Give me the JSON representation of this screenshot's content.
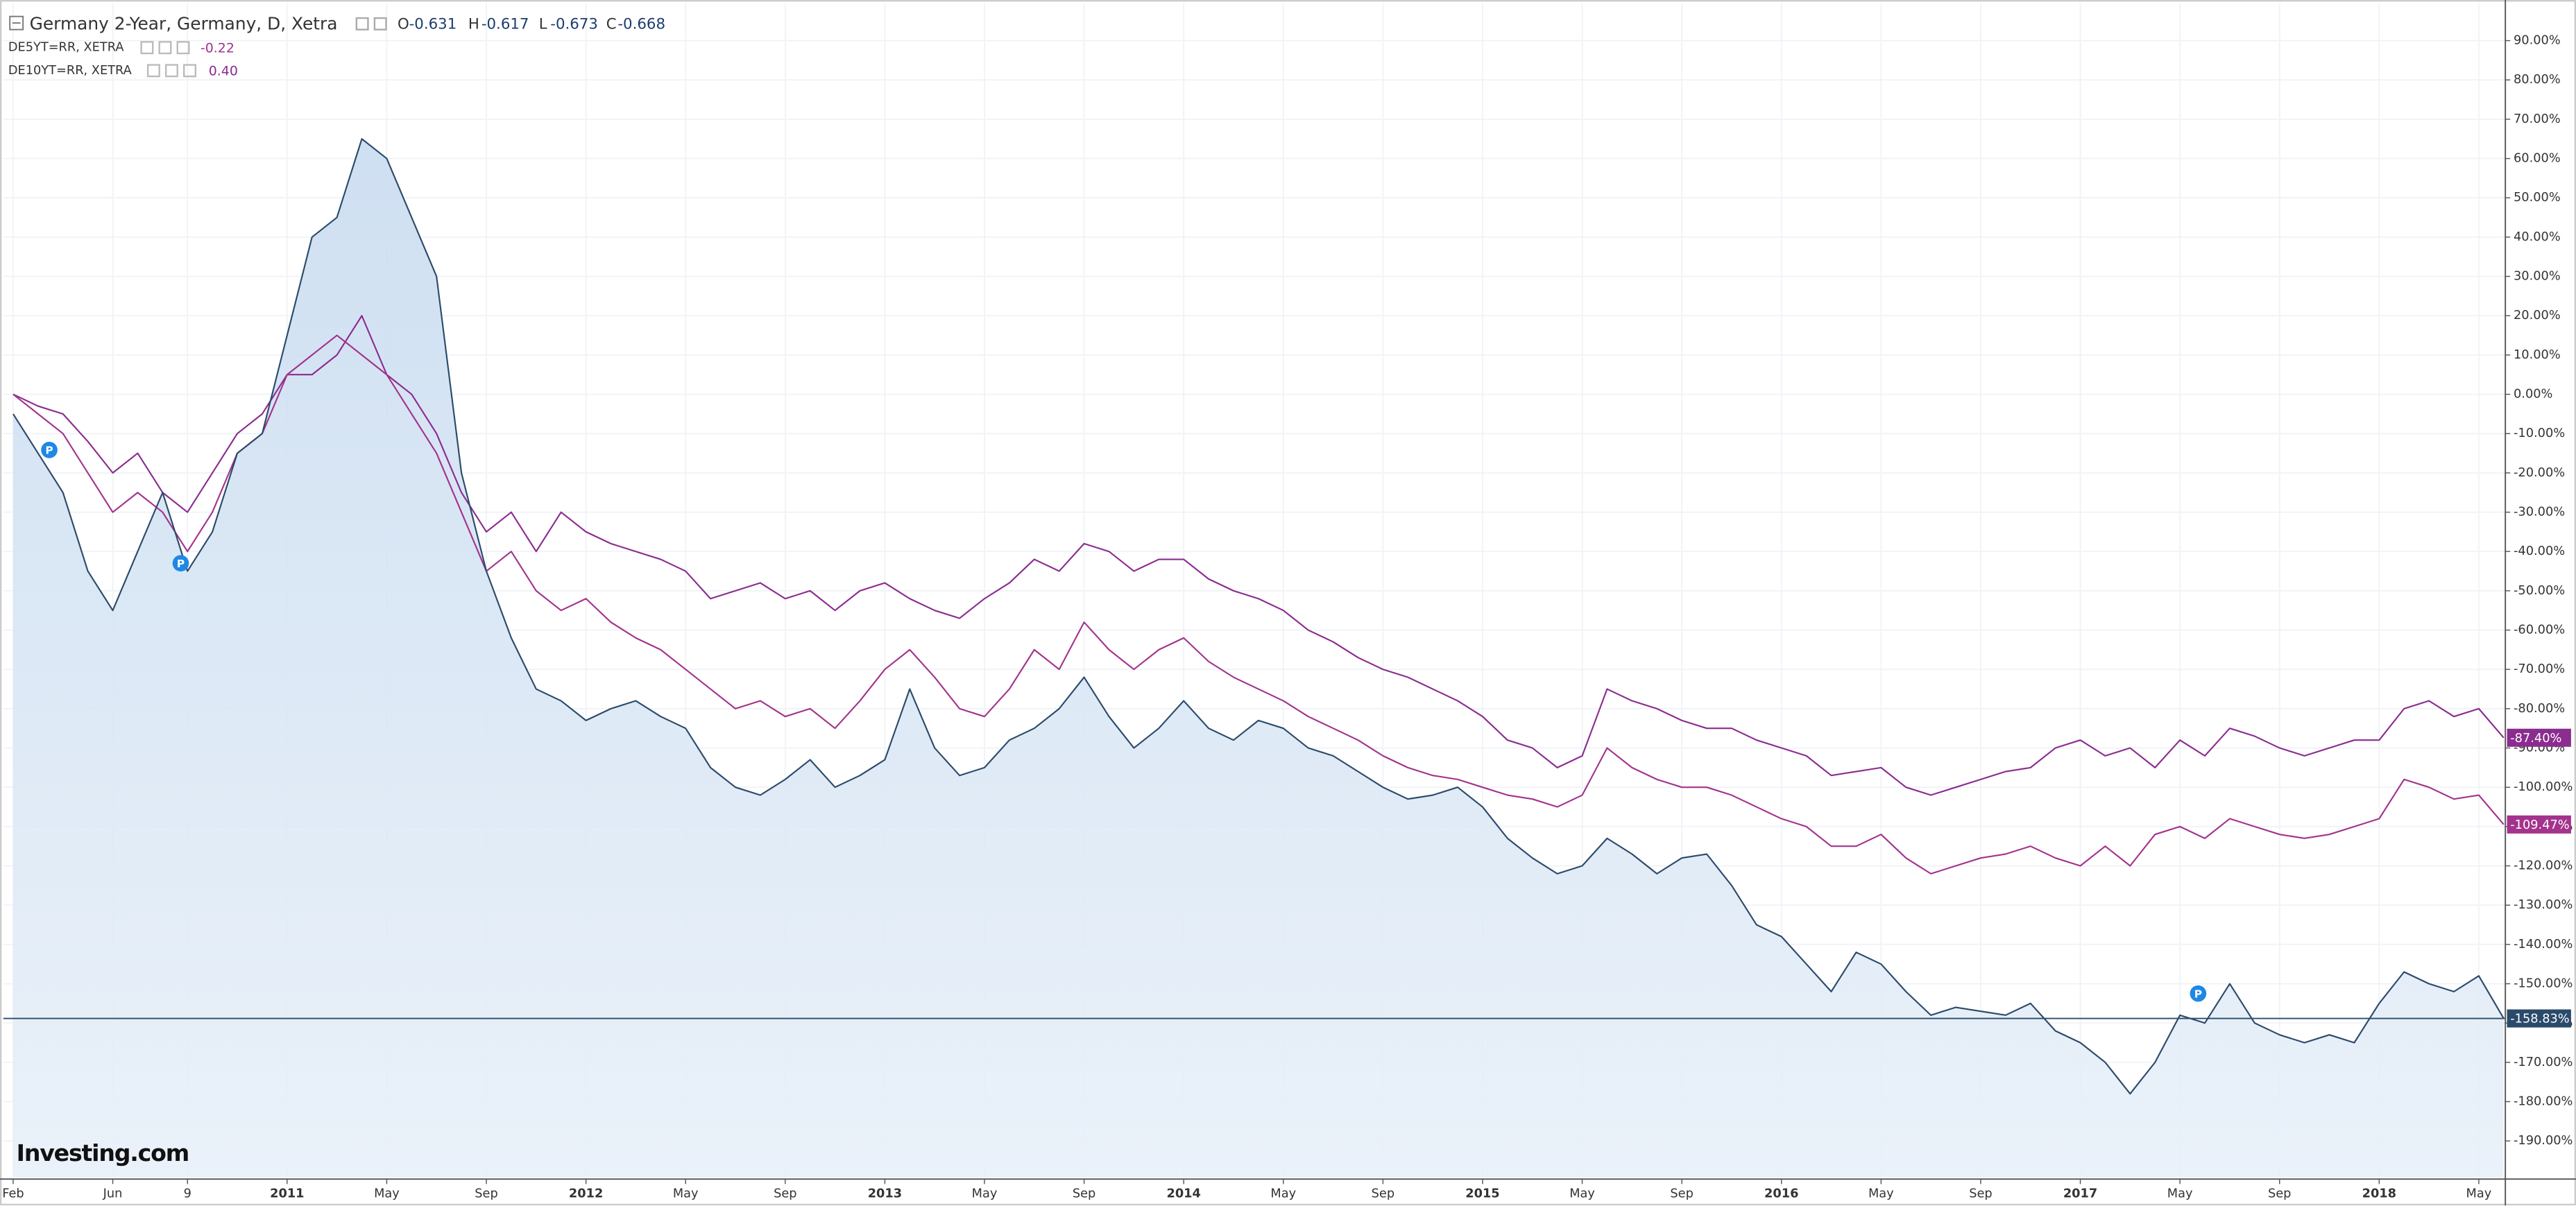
{
  "chart_data": {
    "type": "line",
    "title": "Germany 2-Year, Germany, D, Xetra",
    "ohlc": [
      {
        "label": "O",
        "value": {
          "value": -0.631,
          "label": "-0.631"
        }
      },
      {
        "label": "H",
        "value": {
          "value": -0.617,
          "label": "-0.617"
        }
      },
      {
        "label": "L",
        "value": {
          "value": -0.673,
          "label": "-0.673"
        }
      },
      {
        "label": "C",
        "value": {
          "value": -0.668,
          "label": "-0.668"
        }
      }
    ],
    "logo": "Investing.com",
    "event_marker": "P",
    "categories": [
      "Feb",
      null,
      null,
      null,
      "Jun",
      null,
      null,
      "9",
      null,
      null,
      null,
      "2011",
      null,
      null,
      null,
      "May",
      null,
      null,
      null,
      "Sep",
      null,
      null,
      null,
      "2012",
      null,
      null,
      null,
      "May",
      null,
      null,
      null,
      "Sep",
      null,
      null,
      null,
      "2013",
      null,
      null,
      null,
      "May",
      null,
      null,
      null,
      "Sep",
      null,
      null,
      null,
      "2014",
      null,
      null,
      null,
      "May",
      null,
      null,
      null,
      "Sep",
      null,
      null,
      null,
      "2015",
      null,
      null,
      null,
      "May",
      null,
      null,
      null,
      "Sep",
      null,
      null,
      null,
      "2016",
      null,
      null,
      null,
      "May",
      null,
      null,
      null,
      "Sep",
      null,
      null,
      null,
      "2017",
      null,
      null,
      null,
      "May",
      null,
      null,
      null,
      "Sep",
      null,
      null,
      null,
      "2018",
      null,
      null,
      null,
      "May",
      null
    ],
    "series": [
      {
        "name": "Germany 2-Year, Germany, D, Xetra",
        "color": "#2b4a6b",
        "area": true,
        "values": [
          -5,
          -15,
          -25,
          -45,
          -55,
          -40,
          -25,
          -45,
          -35,
          -15,
          -10,
          15,
          40,
          45,
          65,
          60,
          45,
          30,
          -20,
          -45,
          -62,
          -75,
          -78,
          -83,
          -80,
          -78,
          -82,
          -85,
          -95,
          -100,
          -102,
          -98,
          -93,
          -100,
          -97,
          -93,
          -75,
          -90,
          -97,
          -95,
          -88,
          -85,
          -80,
          -72,
          -82,
          -90,
          -85,
          -78,
          -85,
          -88,
          -83,
          -85,
          -90,
          -92,
          -96,
          -100,
          -103,
          -102,
          -100,
          -105,
          -113,
          -118,
          -122,
          -120,
          -113,
          -117,
          -122,
          -118,
          -117,
          -125,
          -135,
          -138,
          -145,
          -152,
          -142,
          -145,
          -152,
          -158,
          -156,
          -157,
          -158,
          -155,
          -162,
          -165,
          -170,
          -178,
          -170,
          -158,
          -160,
          -150,
          -160,
          -163,
          -165,
          -163,
          -165,
          -155,
          -147,
          -150,
          -152,
          -148,
          -158.83
        ],
        "value_labels": [
          null,
          null,
          null,
          null,
          null,
          null,
          null,
          null,
          null,
          null,
          null,
          null,
          null,
          null,
          null,
          null,
          null,
          null,
          null,
          null,
          null,
          null,
          null,
          null,
          null,
          null,
          null,
          null,
          null,
          null,
          null,
          null,
          null,
          null,
          null,
          null,
          null,
          null,
          null,
          null,
          null,
          null,
          null,
          null,
          null,
          null,
          null,
          null,
          null,
          null,
          null,
          null,
          null,
          null,
          null,
          null,
          null,
          null,
          null,
          null,
          null,
          null,
          null,
          null,
          null,
          null,
          null,
          null,
          null,
          null,
          null,
          null,
          null,
          null,
          null,
          null,
          null,
          null,
          null,
          null,
          null,
          null,
          null,
          null,
          null,
          null,
          null,
          null,
          null,
          null,
          null,
          null,
          null,
          null,
          null,
          null,
          null,
          null,
          null,
          null,
          "-158.83%"
        ]
      },
      {
        "name": "DE5YT=RR, XETRA",
        "color": "#a3338c",
        "legend_value": {
          "value": -0.22,
          "label": "-0.22"
        },
        "values": [
          0,
          -5,
          -10,
          -20,
          -30,
          -25,
          -30,
          -40,
          -30,
          -15,
          -10,
          5,
          10,
          15,
          10,
          5,
          -5,
          -15,
          -30,
          -45,
          -40,
          -50,
          -55,
          -52,
          -58,
          -62,
          -65,
          -70,
          -75,
          -80,
          -78,
          -82,
          -80,
          -85,
          -78,
          -70,
          -65,
          -72,
          -80,
          -82,
          -75,
          -65,
          -70,
          -58,
          -65,
          -70,
          -65,
          -62,
          -68,
          -72,
          -75,
          -78,
          -82,
          -85,
          -88,
          -92,
          -95,
          -97,
          -98,
          -100,
          -102,
          -103,
          -105,
          -102,
          -90,
          -95,
          -98,
          -100,
          -100,
          -102,
          -105,
          -108,
          -110,
          -115,
          -115,
          -112,
          -118,
          -122,
          -120,
          -118,
          -117,
          -115,
          -118,
          -120,
          -115,
          -120,
          -112,
          -110,
          -113,
          -108,
          -110,
          -112,
          -113,
          -112,
          -110,
          -108,
          -98,
          -100,
          -103,
          -102,
          -109.47
        ],
        "value_labels": [
          null,
          null,
          null,
          null,
          null,
          null,
          null,
          null,
          null,
          null,
          null,
          null,
          null,
          null,
          null,
          null,
          null,
          null,
          null,
          null,
          null,
          null,
          null,
          null,
          null,
          null,
          null,
          null,
          null,
          null,
          null,
          null,
          null,
          null,
          null,
          null,
          null,
          null,
          null,
          null,
          null,
          null,
          null,
          null,
          null,
          null,
          null,
          null,
          null,
          null,
          null,
          null,
          null,
          null,
          null,
          null,
          null,
          null,
          null,
          null,
          null,
          null,
          null,
          null,
          null,
          null,
          null,
          null,
          null,
          null,
          null,
          null,
          null,
          null,
          null,
          null,
          null,
          null,
          null,
          null,
          null,
          null,
          null,
          null,
          null,
          null,
          null,
          null,
          null,
          null,
          null,
          null,
          null,
          null,
          null,
          null,
          null,
          null,
          null,
          null,
          "-109.47%"
        ]
      },
      {
        "name": "DE10YT=RR, XETRA",
        "color": "#8b2c8f",
        "legend_value": {
          "value": 0.4,
          "label": "0.40"
        },
        "values": [
          0,
          -3,
          -5,
          -12,
          -20,
          -15,
          -25,
          -30,
          -20,
          -10,
          -5,
          5,
          5,
          10,
          20,
          5,
          0,
          -10,
          -25,
          -35,
          -30,
          -40,
          -30,
          -35,
          -38,
          -40,
          -42,
          -45,
          -52,
          -50,
          -48,
          -52,
          -50,
          -55,
          -50,
          -48,
          -52,
          -55,
          -57,
          -52,
          -48,
          -42,
          -45,
          -38,
          -40,
          -45,
          -42,
          -42,
          -47,
          -50,
          -52,
          -55,
          -60,
          -63,
          -67,
          -70,
          -72,
          -75,
          -78,
          -82,
          -88,
          -90,
          -95,
          -92,
          -75,
          -78,
          -80,
          -83,
          -85,
          -85,
          -88,
          -90,
          -92,
          -97,
          -96,
          -95,
          -100,
          -102,
          -100,
          -98,
          -96,
          -95,
          -90,
          -88,
          -92,
          -90,
          -95,
          -88,
          -92,
          -85,
          -87,
          -90,
          -92,
          -90,
          -88,
          -88,
          -80,
          -78,
          -82,
          -80,
          -87.4
        ],
        "value_labels": [
          null,
          null,
          null,
          null,
          null,
          null,
          null,
          null,
          null,
          null,
          null,
          null,
          null,
          null,
          null,
          null,
          null,
          null,
          null,
          null,
          null,
          null,
          null,
          null,
          null,
          null,
          null,
          null,
          null,
          null,
          null,
          null,
          null,
          null,
          null,
          null,
          null,
          null,
          null,
          null,
          null,
          null,
          null,
          null,
          null,
          null,
          null,
          null,
          null,
          null,
          null,
          null,
          null,
          null,
          null,
          null,
          null,
          null,
          null,
          null,
          null,
          null,
          null,
          null,
          null,
          null,
          null,
          null,
          null,
          null,
          null,
          null,
          null,
          null,
          null,
          null,
          null,
          null,
          null,
          null,
          null,
          null,
          null,
          null,
          null,
          null,
          null,
          null,
          null,
          null,
          null,
          null,
          null,
          null,
          null,
          null,
          null,
          null,
          null,
          null,
          "-87.40%"
        ]
      }
    ],
    "ylim": [
      -199.3,
      99.5
    ],
    "yticks": [
      {
        "value": 90,
        "label": "90.00%"
      },
      {
        "value": 80,
        "label": "80.00%"
      },
      {
        "value": 70,
        "label": "70.00%"
      },
      {
        "value": 60,
        "label": "60.00%"
      },
      {
        "value": 50,
        "label": "50.00%"
      },
      {
        "value": 40,
        "label": "40.00%"
      },
      {
        "value": 30,
        "label": "30.00%"
      },
      {
        "value": 20,
        "label": "20.00%"
      },
      {
        "value": 10,
        "label": "10.00%"
      },
      {
        "value": 0,
        "label": "0.00%"
      },
      {
        "value": -10,
        "label": "-10.00%"
      },
      {
        "value": -20,
        "label": "-20.00%"
      },
      {
        "value": -30,
        "label": "-30.00%"
      },
      {
        "value": -40,
        "label": "-40.00%"
      },
      {
        "value": -50,
        "label": "-50.00%"
      },
      {
        "value": -60,
        "label": "-60.00%"
      },
      {
        "value": -70,
        "label": "-70.00%"
      },
      {
        "value": -80,
        "label": "-80.00%"
      },
      {
        "value": -90,
        "label": "-90.00%"
      },
      {
        "value": -100,
        "label": "-100.00%"
      },
      {
        "value": -110,
        "label": "-110.00%"
      },
      {
        "value": -120,
        "label": "-120.00%"
      },
      {
        "value": -130,
        "label": "-130.00%"
      },
      {
        "value": -140,
        "label": "-140.00%"
      },
      {
        "value": -150,
        "label": "-150.00%"
      },
      {
        "value": -160,
        "label": "-160.00%"
      },
      {
        "value": -170,
        "label": "-170.00%"
      },
      {
        "value": -180,
        "label": "-180.00%"
      },
      {
        "value": -190,
        "label": "-190.00%"
      }
    ],
    "grid": true
  }
}
